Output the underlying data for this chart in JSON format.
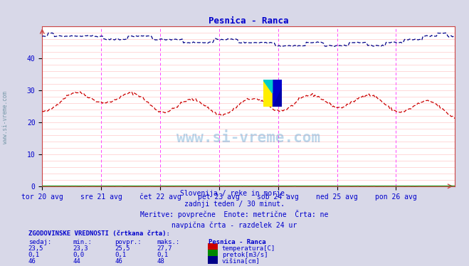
{
  "title": "Pesnica - Ranca",
  "title_color": "#0000cc",
  "bg_color": "#d8d8e8",
  "plot_bg_color": "#ffffff",
  "grid_color": "#ffbbbb",
  "x_labels": [
    "tor 20 avg",
    "sre 21 avg",
    "čet 22 avg",
    "pet 23 avg",
    "sob 24 avg",
    "ned 25 avg",
    "pon 26 avg"
  ],
  "x_ticks_pos": [
    0,
    48,
    96,
    144,
    192,
    240,
    288
  ],
  "x_max": 336,
  "y_min": 0,
  "y_max": 50,
  "y_ticks": [
    0,
    10,
    20,
    30,
    40
  ],
  "vline_color": "#ff44ff",
  "temp_color": "#cc0000",
  "flow_color": "#008800",
  "height_color": "#000088",
  "watermark_text": "www.si-vreme.com",
  "watermark_color": "#5599cc",
  "watermark_alpha": 0.4,
  "subtitle_lines": [
    "Slovenija / reke in morje.",
    "zadnji teden / 30 minut.",
    "Meritve: povprečne  Enote: metrične  Črta: ne",
    "navpična črta - razdelek 24 ur"
  ],
  "subtitle_color": "#0000cc",
  "table_header": "ZGODOVINSKE VREDNOSTI (črtkana črta):",
  "table_col_headers": [
    "sedaj:",
    "min.:",
    "povpr.:",
    "maks.:"
  ],
  "station_name": "Pesnica - Ranca",
  "rows": [
    {
      "sedaj": "23,5",
      "min": "23,3",
      "povpr": "25,5",
      "maks": "27,7",
      "label": "temperatura[C]",
      "color": "#cc0000"
    },
    {
      "sedaj": "0,1",
      "min": "0,0",
      "povpr": "0,1",
      "maks": "0,1",
      "label": "pretok[m3/s]",
      "color": "#008800"
    },
    {
      "sedaj": "46",
      "min": "44",
      "povpr": "46",
      "maks": "48",
      "label": "višina[cm]",
      "color": "#000088"
    }
  ],
  "n_points": 337,
  "left_label_color": "#7799aa",
  "axis_color": "#cc4444",
  "tick_color": "#0000cc",
  "tick_fontsize": 7,
  "logo_colors": [
    "#ffee00",
    "#00cccc",
    "#0000cc"
  ],
  "axis_label_fontsize": 7
}
